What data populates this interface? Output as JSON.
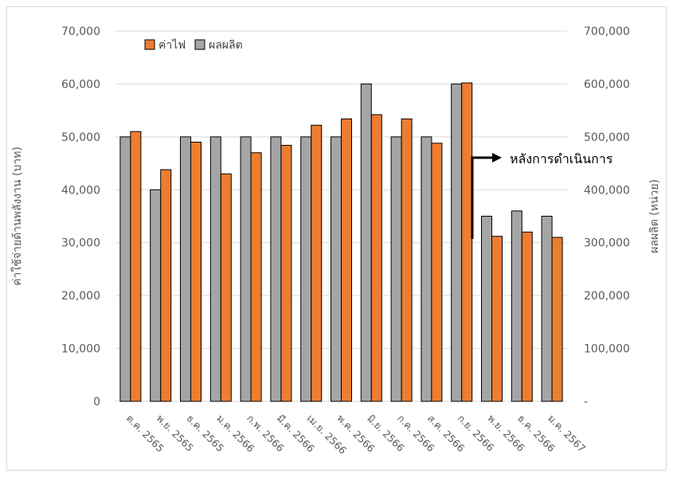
{
  "chart_data": {
    "type": "bar",
    "categories": [
      "ต.ค. 2565",
      "พ.ย. 2565",
      "ธ.ค. 2565",
      "ม.ค. 2566",
      "ก.พ. 2566",
      "มี.ค. 2566",
      "เม.ย. 2566",
      "พ.ค. 2566",
      "มิ.ย. 2566",
      "ก.ค. 2566",
      "ส.ค. 2566",
      "ก.ย. 2566",
      "พ.ย. 2566",
      "ธ.ค. 2566",
      "ม.ค. 2567"
    ],
    "series": [
      {
        "name": "ผลผลิต",
        "axis": "right",
        "color": "#a5a5a5",
        "values": [
          500000,
          400000,
          500000,
          500000,
          500000,
          500000,
          500000,
          500000,
          600000,
          500000,
          500000,
          600000,
          350000,
          360000,
          350000
        ]
      },
      {
        "name": "ค่าไฟ",
        "axis": "left",
        "color": "#ed7d31",
        "values": [
          51000,
          43800,
          49000,
          43000,
          47000,
          48400,
          52200,
          53400,
          54200,
          53400,
          48800,
          60200,
          31200,
          32000,
          31000
        ]
      }
    ],
    "ylabel_left": "ค่าใช้จ่ายด้านพลังงาน (บาท)",
    "ylabel_right": "ผลผลิต (หน่วย)",
    "ylim_left": [
      0,
      70000
    ],
    "ylim_right": [
      0,
      700000
    ],
    "yticks_left": [
      "0",
      "10,000",
      "20,000",
      "30,000",
      "40,000",
      "50,000",
      "60,000",
      "70,000"
    ],
    "yticks_right": [
      "-",
      "100,000",
      "200,000",
      "300,000",
      "400,000",
      "500,000",
      "600,000",
      "700,000"
    ],
    "grid": true,
    "legend_position": "top-left",
    "annotation": "หลังการดำเนินการ"
  }
}
